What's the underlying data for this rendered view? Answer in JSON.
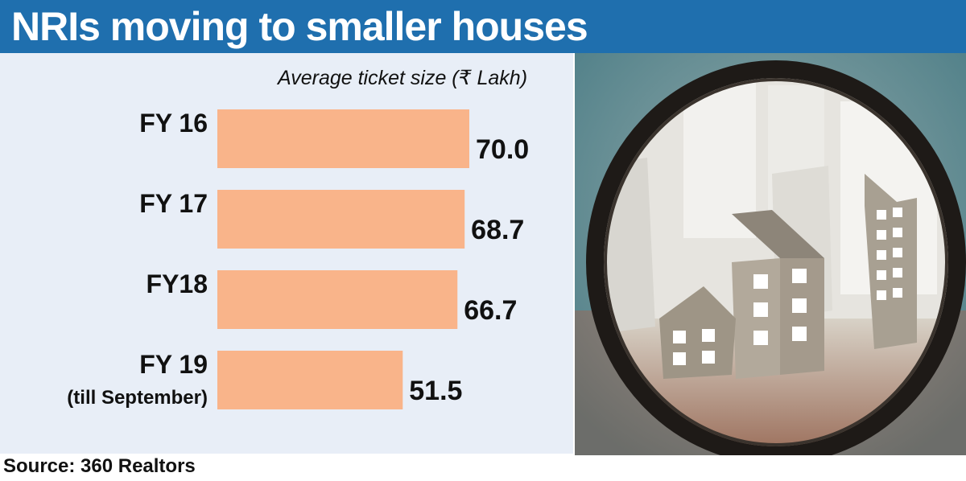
{
  "header": {
    "title": "NRIs moving to smaller houses"
  },
  "source": "Source: 360 Realtors",
  "chart_data": {
    "type": "bar",
    "orientation": "horizontal",
    "subtitle": "Average ticket size (₹ Lakh)",
    "categories": [
      {
        "label": [
          "FY 16"
        ]
      },
      {
        "label": [
          "FY 17"
        ]
      },
      {
        "label": [
          "FY18"
        ]
      },
      {
        "label": [
          "FY 19",
          "(till September)"
        ]
      }
    ],
    "values": [
      70.0,
      68.7,
      66.7,
      51.5
    ],
    "value_labels": [
      "70.0",
      "68.7",
      "66.7",
      "51.5"
    ],
    "bar_color": "#f9b48a",
    "panel_color": "#e8eef7",
    "grid": false,
    "legend": "none"
  },
  "colors": {
    "header": "#1f6fae",
    "photo_background": "#4d7e87"
  },
  "photo": {
    "icon": "magnifying-glass-houses-icon"
  }
}
